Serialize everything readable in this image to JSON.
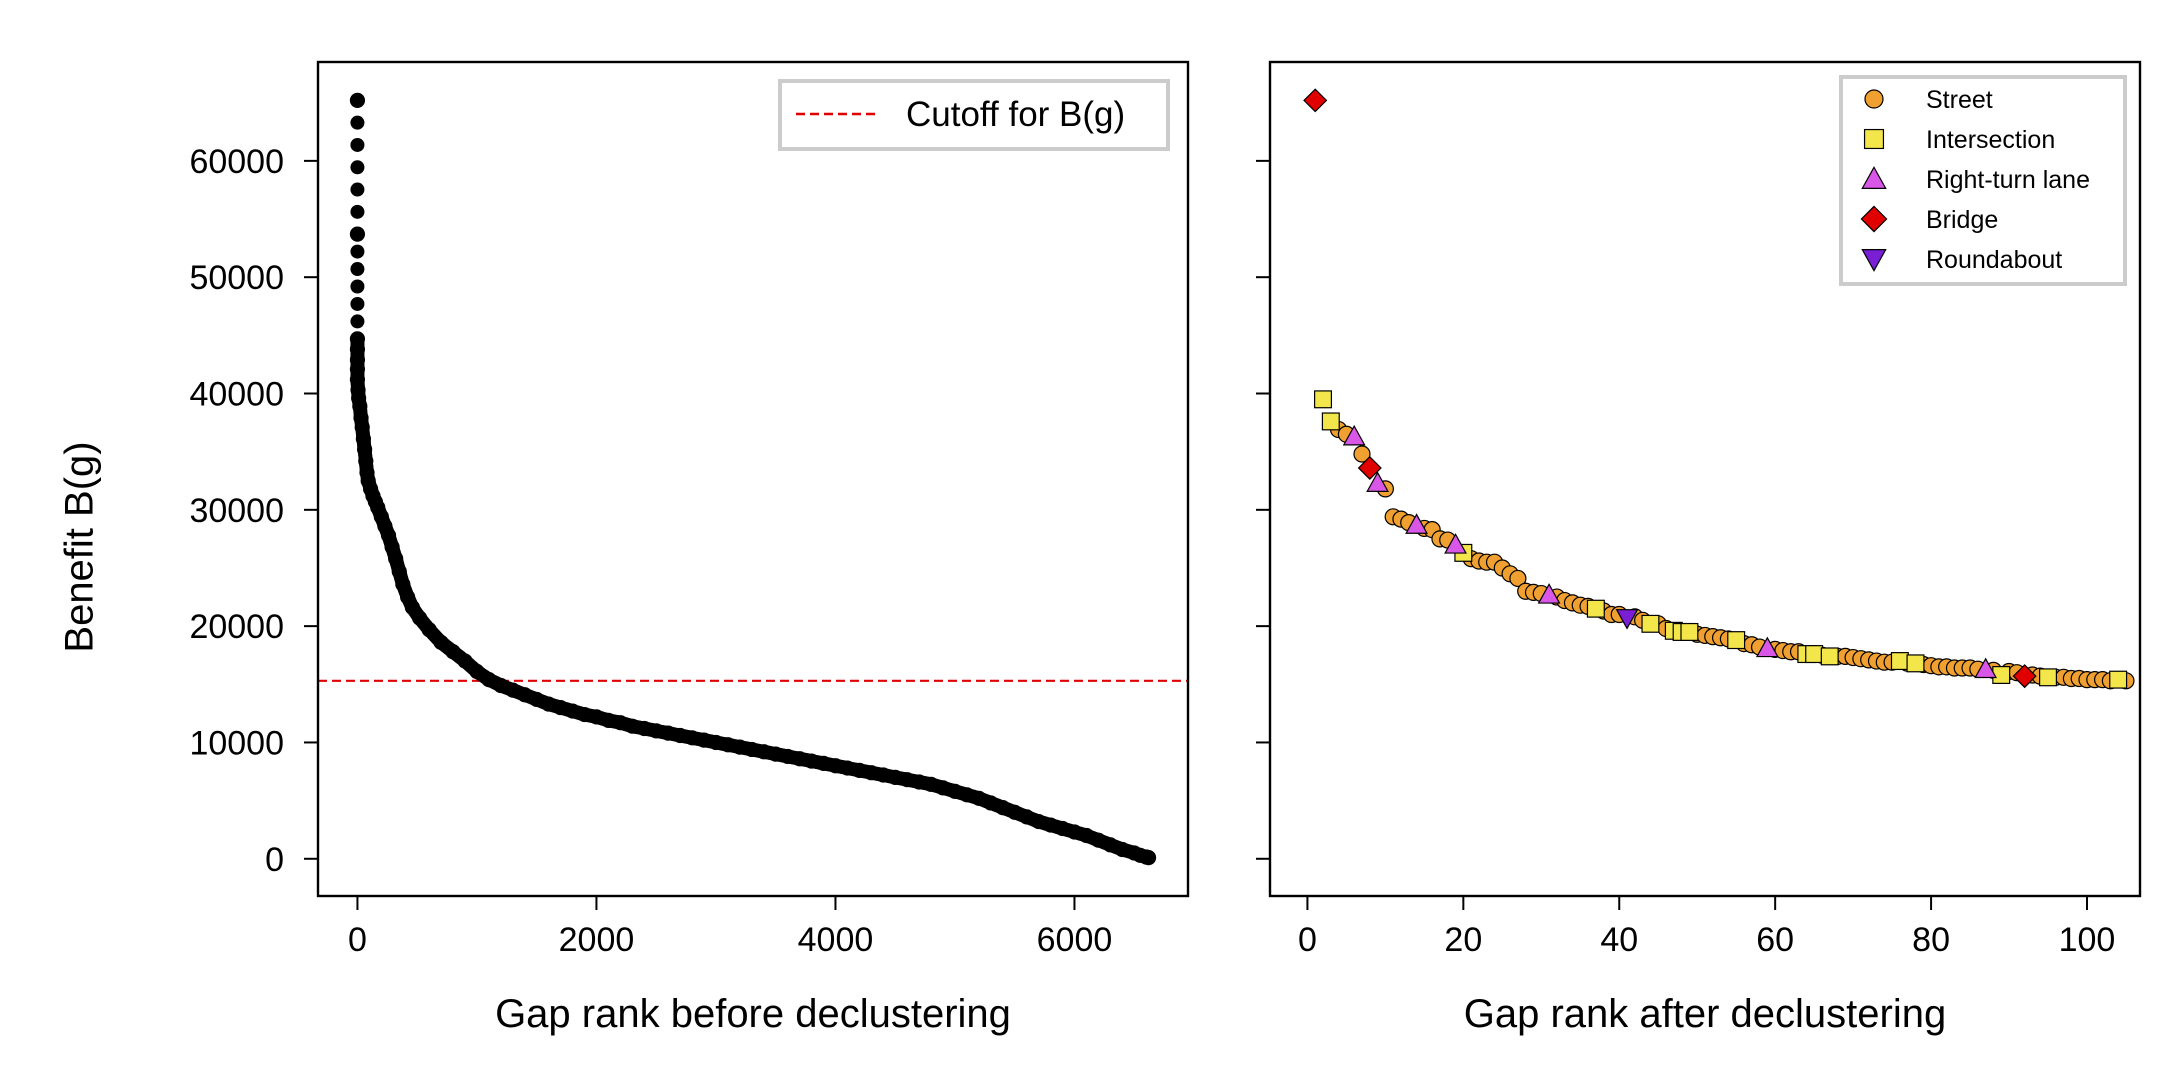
{
  "chart_data": [
    {
      "type": "scatter",
      "panel": "left",
      "xlabel": "Gap rank before declustering",
      "ylabel": "Benefit B(g)",
      "xlim": [
        -330,
        6950
      ],
      "ylim": [
        -3200,
        68500
      ],
      "xticks": [
        0,
        2000,
        4000,
        6000
      ],
      "yticks": [
        0,
        10000,
        20000,
        30000,
        40000,
        50000,
        60000
      ],
      "xtick_labels": [
        "0",
        "2000",
        "4000",
        "6000"
      ],
      "ytick_labels": [
        "0",
        "10000",
        "20000",
        "30000",
        "40000",
        "50000",
        "60000"
      ],
      "grid": false,
      "legend_position": "top-right",
      "marker_color": "#000000",
      "series": [
        {
          "marker": "circle",
          "color": "#000000",
          "points": [
            [
              0,
              65200
            ],
            [
              0,
              53700
            ],
            [
              0,
              44700
            ],
            [
              0,
              43800
            ],
            [
              0,
              42900
            ],
            [
              0,
              42100
            ],
            [
              0,
              41200
            ],
            [
              5,
              40300
            ],
            [
              10,
              39600
            ],
            [
              20,
              38900
            ],
            [
              30,
              37900
            ],
            [
              40,
              37100
            ],
            [
              50,
              36100
            ],
            [
              60,
              35200
            ],
            [
              70,
              34200
            ],
            [
              80,
              33200
            ],
            [
              90,
              32500
            ],
            [
              110,
              31800
            ],
            [
              130,
              31200
            ],
            [
              150,
              30700
            ],
            [
              170,
              30200
            ],
            [
              200,
              29400
            ],
            [
              230,
              28600
            ],
            [
              260,
              27800
            ],
            [
              290,
              26800
            ],
            [
              320,
              25800
            ],
            [
              350,
              24700
            ],
            [
              380,
              23600
            ],
            [
              420,
              22500
            ],
            [
              460,
              21600
            ],
            [
              520,
              20700
            ],
            [
              600,
              19700
            ],
            [
              700,
              18600
            ],
            [
              800,
              17800
            ],
            [
              900,
              17000
            ],
            [
              1000,
              16100
            ],
            [
              1100,
              15400
            ],
            [
              1200,
              14900
            ],
            [
              1300,
              14500
            ],
            [
              1400,
              14100
            ],
            [
              1500,
              13700
            ],
            [
              1600,
              13300
            ],
            [
              1700,
              13000
            ],
            [
              1800,
              12700
            ],
            [
              1900,
              12400
            ],
            [
              2000,
              12200
            ],
            [
              2100,
              11900
            ],
            [
              2200,
              11700
            ],
            [
              2300,
              11400
            ],
            [
              2400,
              11200
            ],
            [
              2500,
              11000
            ],
            [
              2600,
              10800
            ],
            [
              2700,
              10600
            ],
            [
              2800,
              10400
            ],
            [
              2900,
              10200
            ],
            [
              3000,
              10000
            ],
            [
              3100,
              9800
            ],
            [
              3200,
              9600
            ],
            [
              3300,
              9400
            ],
            [
              3400,
              9200
            ],
            [
              3500,
              9000
            ],
            [
              3600,
              8800
            ],
            [
              3700,
              8600
            ],
            [
              3800,
              8400
            ],
            [
              3900,
              8200
            ],
            [
              4000,
              8000
            ],
            [
              4100,
              7800
            ],
            [
              4200,
              7600
            ],
            [
              4300,
              7400
            ],
            [
              4400,
              7200
            ],
            [
              4500,
              7000
            ],
            [
              4600,
              6800
            ],
            [
              4700,
              6600
            ],
            [
              4800,
              6400
            ],
            [
              4900,
              6100
            ],
            [
              5000,
              5800
            ],
            [
              5100,
              5500
            ],
            [
              5200,
              5200
            ],
            [
              5300,
              4800
            ],
            [
              5400,
              4400
            ],
            [
              5500,
              4000
            ],
            [
              5600,
              3600
            ],
            [
              5700,
              3200
            ],
            [
              5800,
              2900
            ],
            [
              5900,
              2600
            ],
            [
              6000,
              2300
            ],
            [
              6100,
              2000
            ],
            [
              6200,
              1600
            ],
            [
              6300,
              1200
            ],
            [
              6400,
              800
            ],
            [
              6500,
              500
            ],
            [
              6550,
              300
            ],
            [
              6600,
              150
            ],
            [
              6620,
              100
            ]
          ]
        }
      ],
      "hline": {
        "y": 15300,
        "label": "Cutoff for B(g)",
        "color": "#e00000",
        "style": "dashed"
      },
      "legend": [
        {
          "label": "Cutoff for B(g)",
          "type": "dashed-line",
          "color": "#e00000"
        }
      ]
    },
    {
      "type": "scatter",
      "panel": "right",
      "xlabel": "Gap rank after declustering",
      "ylabel": "",
      "xlim": [
        -4.8,
        106.8
      ],
      "ylim": [
        -3200,
        68500
      ],
      "xticks": [
        0,
        20,
        40,
        60,
        80,
        100
      ],
      "yticks": [
        0,
        10000,
        20000,
        30000,
        40000,
        50000,
        60000
      ],
      "xtick_labels": [
        "0",
        "20",
        "40",
        "60",
        "80",
        "100"
      ],
      "grid": false,
      "legend_position": "top-right",
      "series": [
        {
          "name": "Street",
          "marker": "circle",
          "color": "#f0a030",
          "points": [
            [
              4,
              36900
            ],
            [
              5,
              36500
            ],
            [
              7,
              34800
            ],
            [
              10,
              31800
            ],
            [
              11,
              29400
            ],
            [
              12,
              29200
            ],
            [
              13,
              28900
            ],
            [
              15,
              28400
            ],
            [
              16,
              28300
            ],
            [
              17,
              27500
            ],
            [
              18,
              27400
            ],
            [
              21,
              25800
            ],
            [
              22,
              25600
            ],
            [
              23,
              25500
            ],
            [
              24,
              25500
            ],
            [
              25,
              25000
            ],
            [
              26,
              24500
            ],
            [
              27,
              24100
            ],
            [
              28,
              23000
            ],
            [
              29,
              22900
            ],
            [
              30,
              22800
            ],
            [
              32,
              22500
            ],
            [
              33,
              22200
            ],
            [
              34,
              22000
            ],
            [
              35,
              21800
            ],
            [
              36,
              21700
            ],
            [
              38,
              21300
            ],
            [
              39,
              21000
            ],
            [
              40,
              21000
            ],
            [
              42,
              20800
            ],
            [
              43,
              20500
            ],
            [
              45,
              20200
            ],
            [
              46,
              19800
            ],
            [
              50,
              19300
            ],
            [
              51,
              19200
            ],
            [
              52,
              19100
            ],
            [
              53,
              19000
            ],
            [
              54,
              18900
            ],
            [
              56,
              18500
            ],
            [
              57,
              18400
            ],
            [
              58,
              18200
            ],
            [
              60,
              18000
            ],
            [
              61,
              17900
            ],
            [
              62,
              17800
            ],
            [
              63,
              17800
            ],
            [
              66,
              17500
            ],
            [
              68,
              17400
            ],
            [
              69,
              17400
            ],
            [
              70,
              17300
            ],
            [
              71,
              17200
            ],
            [
              72,
              17100
            ],
            [
              73,
              17000
            ],
            [
              74,
              16900
            ],
            [
              75,
              16900
            ],
            [
              77,
              16800
            ],
            [
              79,
              16700
            ],
            [
              80,
              16600
            ],
            [
              81,
              16500
            ],
            [
              82,
              16500
            ],
            [
              83,
              16400
            ],
            [
              84,
              16400
            ],
            [
              85,
              16400
            ],
            [
              86,
              16300
            ],
            [
              88,
              16200
            ],
            [
              90,
              16100
            ],
            [
              91,
              16000
            ],
            [
              93,
              15800
            ],
            [
              94,
              15700
            ],
            [
              96,
              15600
            ],
            [
              97,
              15600
            ],
            [
              98,
              15500
            ],
            [
              99,
              15500
            ],
            [
              100,
              15400
            ],
            [
              101,
              15400
            ],
            [
              102,
              15400
            ],
            [
              103,
              15300
            ],
            [
              105,
              15300
            ]
          ]
        },
        {
          "name": "Intersection",
          "marker": "square",
          "color": "#f2e64a",
          "points": [
            [
              2,
              39500
            ],
            [
              3,
              37600
            ],
            [
              20,
              26300
            ],
            [
              37,
              21500
            ],
            [
              44,
              20200
            ],
            [
              47,
              19600
            ],
            [
              48,
              19500
            ],
            [
              49,
              19500
            ],
            [
              55,
              18800
            ],
            [
              64,
              17600
            ],
            [
              65,
              17600
            ],
            [
              67,
              17400
            ],
            [
              76,
              17000
            ],
            [
              78,
              16800
            ],
            [
              89,
              15800
            ],
            [
              95,
              15600
            ],
            [
              104,
              15400
            ]
          ]
        },
        {
          "name": "Right-turn lane",
          "marker": "triangle-up",
          "color": "#d957e6",
          "points": [
            [
              6,
              36300
            ],
            [
              9,
              32300
            ],
            [
              14,
              28700
            ],
            [
              19,
              27000
            ],
            [
              31,
              22700
            ],
            [
              59,
              18100
            ],
            [
              87,
              16300
            ]
          ]
        },
        {
          "name": "Bridge",
          "marker": "diamond",
          "color": "#e00000",
          "points": [
            [
              1,
              65200
            ],
            [
              8,
              33600
            ],
            [
              92,
              15700
            ]
          ]
        },
        {
          "name": "Roundabout",
          "marker": "triangle-down",
          "color": "#7a1fd6",
          "points": [
            [
              41,
              20700
            ]
          ]
        }
      ],
      "legend": [
        {
          "label": "Street",
          "marker": "circle",
          "color": "#f0a030"
        },
        {
          "label": "Intersection",
          "marker": "square",
          "color": "#f2e64a"
        },
        {
          "label": "Right-turn lane",
          "marker": "triangle-up",
          "color": "#d957e6"
        },
        {
          "label": "Bridge",
          "marker": "diamond",
          "color": "#e00000"
        },
        {
          "label": "Roundabout",
          "marker": "triangle-down",
          "color": "#7a1fd6"
        }
      ]
    }
  ]
}
